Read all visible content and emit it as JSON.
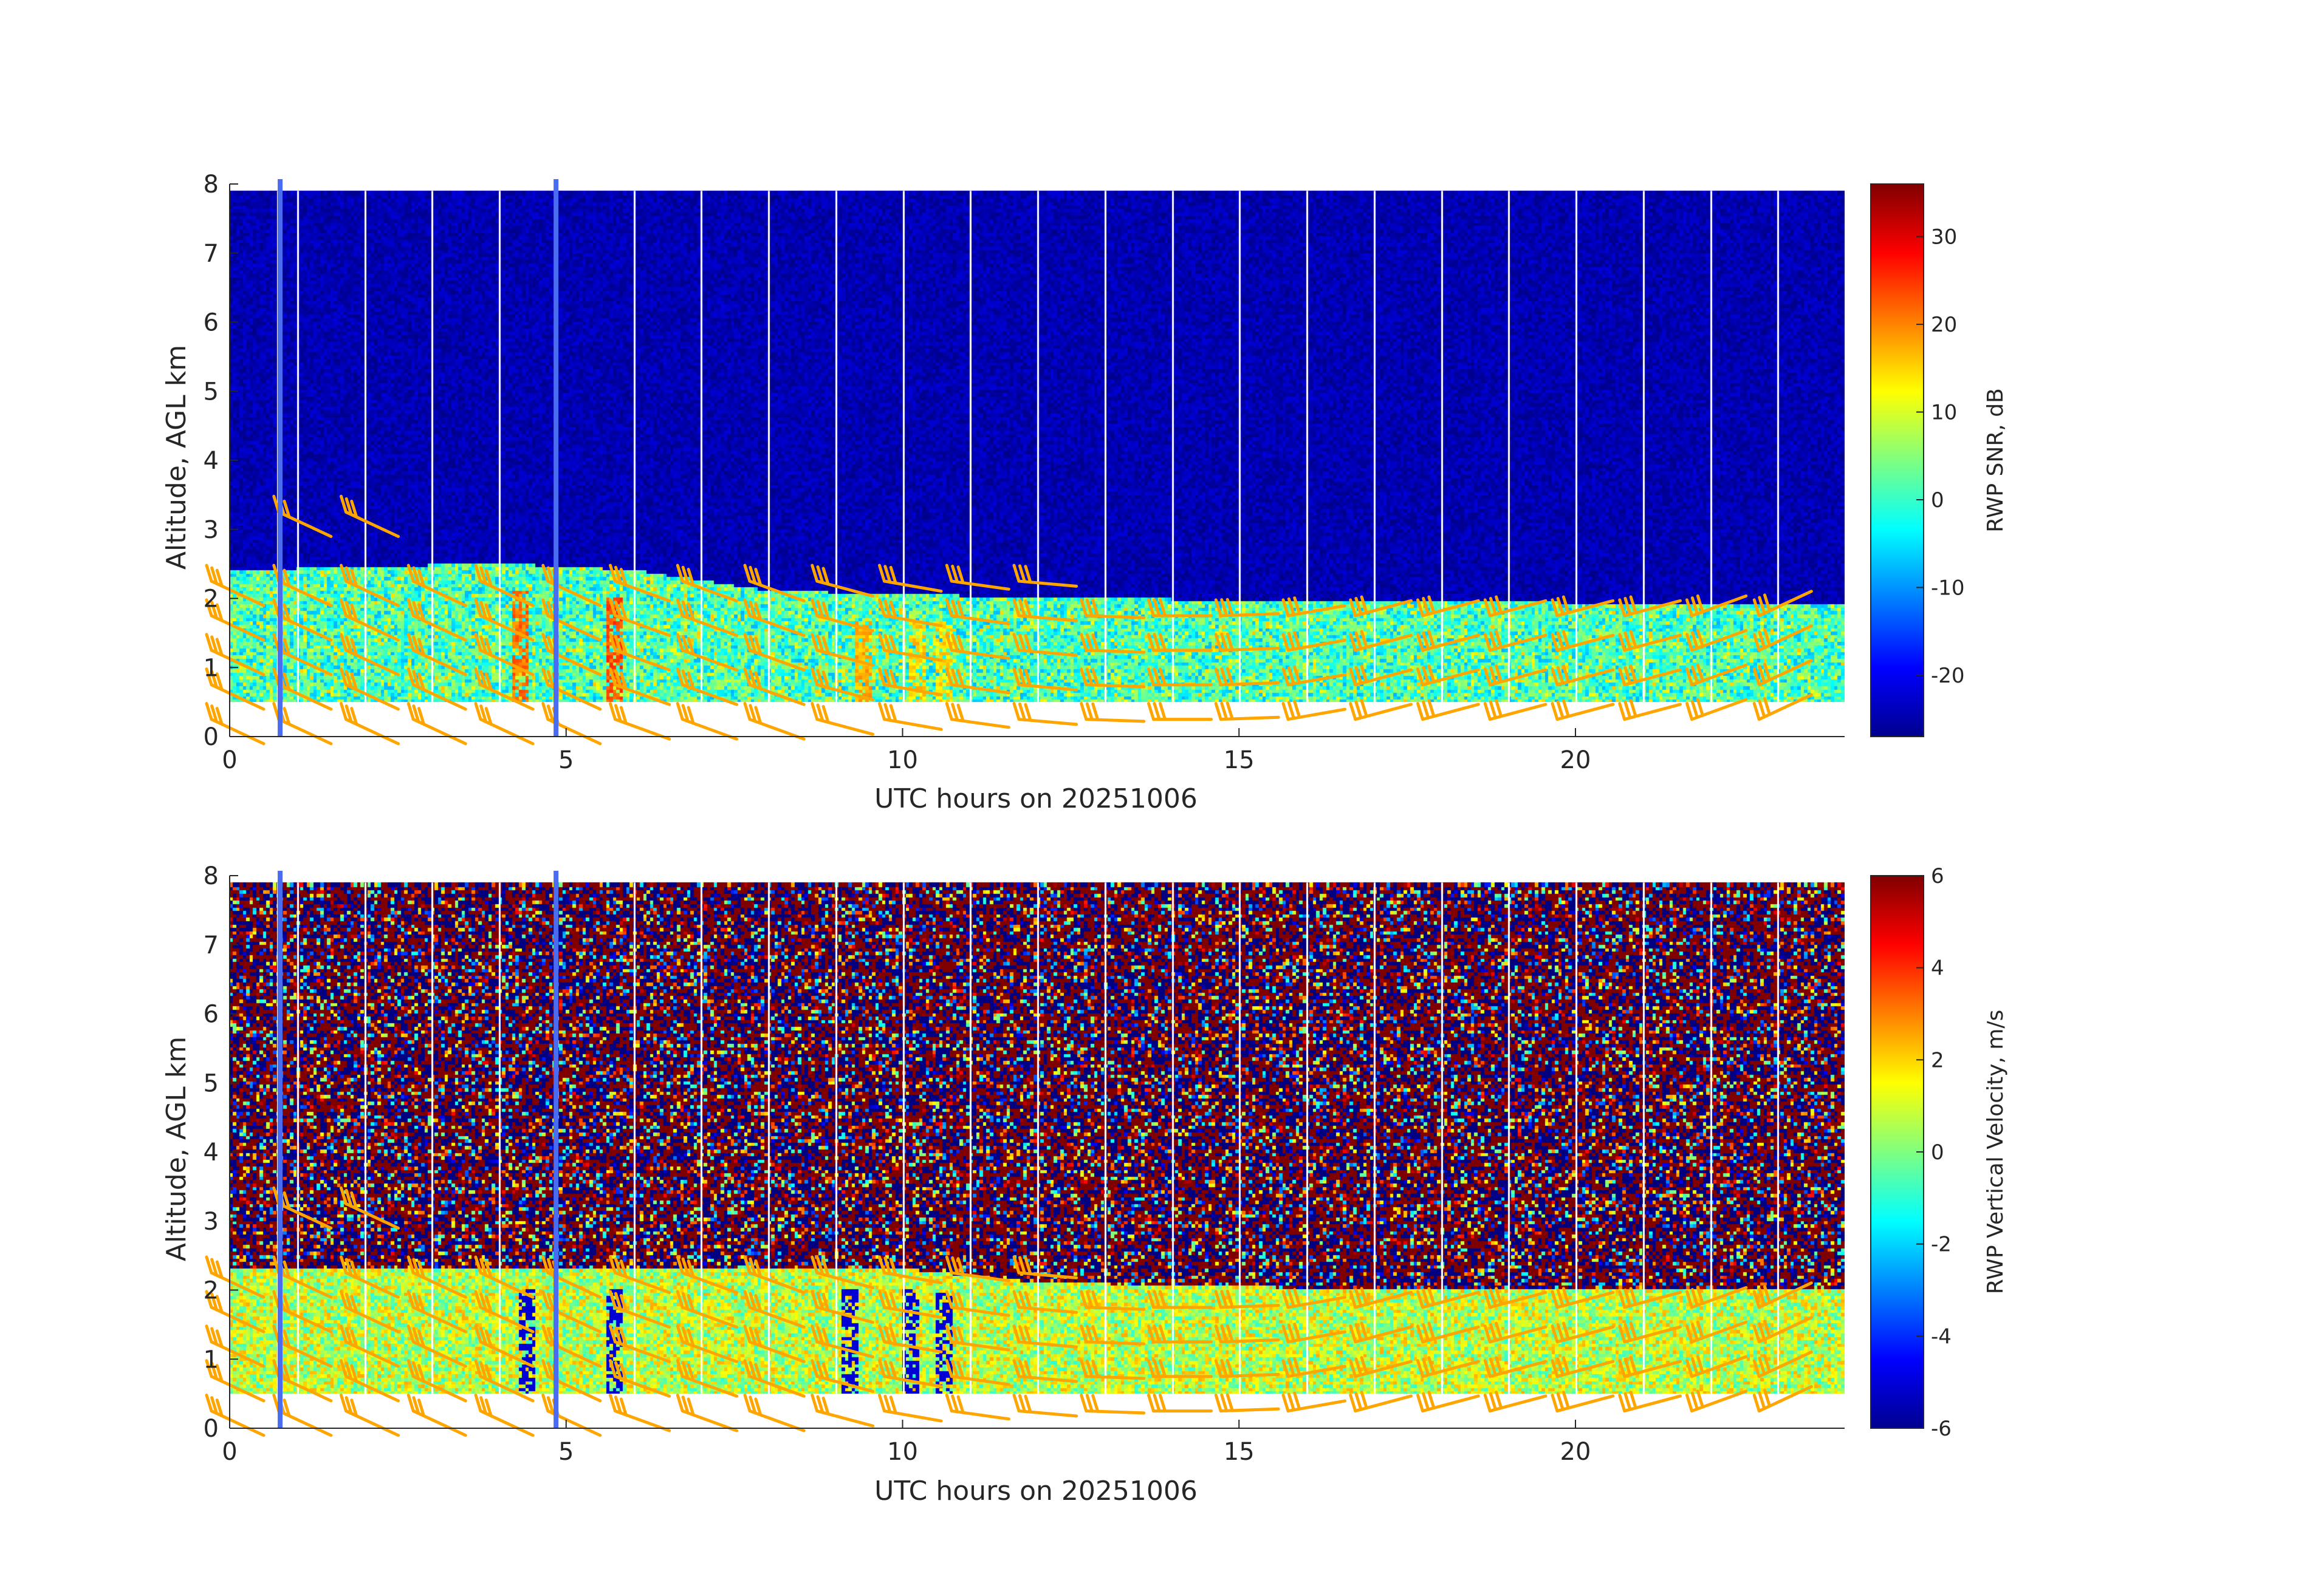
{
  "chart_data": [
    {
      "type": "heatmap",
      "xlabel": "UTC hours on 20251006",
      "ylabel": "Altitude, AGL km",
      "colorbar_label": "RWP SNR, dB",
      "xlim": [
        0,
        24
      ],
      "ylim": [
        0,
        8
      ],
      "x_ticks": [
        0,
        5,
        10,
        15,
        20
      ],
      "y_ticks": [
        0,
        1,
        2,
        3,
        4,
        5,
        6,
        7,
        8
      ],
      "clim": [
        -27,
        36
      ],
      "colorbar_ticks": [
        -20,
        -10,
        0,
        10,
        20,
        30
      ],
      "colormap": "jet",
      "data_bottom_km": 0.5,
      "data_top_km": 7.9,
      "background_value": -24,
      "boundary_layer": {
        "top_km": [
          [
            0,
            2.4
          ],
          [
            4,
            2.5
          ],
          [
            6,
            2.4
          ],
          [
            8,
            2.1
          ],
          [
            12,
            2.0
          ],
          [
            17,
            1.95
          ],
          [
            24,
            1.9
          ]
        ],
        "value_range": [
          -8,
          8
        ]
      },
      "hot_spots": [
        {
          "hour": 4.3,
          "value": 24
        },
        {
          "hour": 5.7,
          "value": 26
        },
        {
          "hour": 9.4,
          "value": 20
        },
        {
          "hour": 10.2,
          "value": 18
        },
        {
          "hour": 10.6,
          "value": 17
        }
      ],
      "missing_hours": [
        0.7,
        1.0,
        2.0,
        3.0,
        4.0,
        6.0,
        7.0,
        8.0,
        9.0,
        10.0,
        11.0,
        12.0,
        13.0,
        14.0,
        15.0,
        16.0,
        17.0,
        18.0,
        19.0,
        20.0,
        21.0,
        22.0,
        23.0
      ],
      "gap_hours": [
        0.75,
        4.85
      ]
    },
    {
      "type": "heatmap",
      "xlabel": "UTC hours on 20251006",
      "ylabel": "Altitude, AGL km",
      "colorbar_label": "RWP Vertical Velocity, m/s",
      "xlim": [
        0,
        24
      ],
      "ylim": [
        0,
        8
      ],
      "x_ticks": [
        0,
        5,
        10,
        15,
        20
      ],
      "y_ticks": [
        0,
        1,
        2,
        3,
        4,
        5,
        6,
        7,
        8
      ],
      "clim": [
        -6,
        6
      ],
      "colorbar_ticks": [
        -6,
        -4,
        -2,
        0,
        2,
        4,
        6
      ],
      "colormap": "jet",
      "data_bottom_km": 0.5,
      "data_top_km": 7.9,
      "noise_range": [
        -6,
        6
      ],
      "boundary_layer": {
        "top_km": [
          [
            0,
            2.3
          ],
          [
            6,
            2.3
          ],
          [
            10,
            2.3
          ],
          [
            12,
            2.1
          ],
          [
            17,
            2.0
          ],
          [
            24,
            2.0
          ]
        ],
        "value_range": [
          -1,
          2.5
        ]
      },
      "downdrafts": [
        {
          "hour": 4.4,
          "value": -5
        },
        {
          "hour": 5.7,
          "value": -5
        },
        {
          "hour": 9.2,
          "value": -5
        },
        {
          "hour": 10.1,
          "value": -5
        },
        {
          "hour": 10.6,
          "value": -5
        }
      ],
      "missing_hours": [
        0.7,
        1.0,
        2.0,
        3.0,
        4.0,
        6.0,
        7.0,
        8.0,
        9.0,
        10.0,
        11.0,
        12.0,
        13.0,
        14.0,
        15.0,
        16.0,
        17.0,
        18.0,
        19.0,
        20.0,
        21.0,
        22.0,
        23.0
      ],
      "gap_hours": [
        0.75,
        4.85
      ]
    }
  ],
  "wind_barbs": {
    "color": "#FFA500",
    "hours": [
      0,
      1,
      2,
      3,
      4,
      5,
      6,
      7,
      8,
      9,
      10,
      11,
      12,
      13,
      14,
      15,
      16,
      17,
      18,
      19,
      20,
      21,
      22,
      23
    ],
    "levels_km": [
      0.25,
      0.75,
      1.25,
      1.75,
      2.25,
      3.25
    ],
    "profiles": [
      {
        "hour": 0,
        "top_km": 2.25,
        "dir_deg": 245
      },
      {
        "hour": 1,
        "top_km": 3.25,
        "dir_deg": 245
      },
      {
        "hour": 2,
        "top_km": 3.25,
        "dir_deg": 245
      },
      {
        "hour": 3,
        "top_km": 2.25,
        "dir_deg": 245
      },
      {
        "hour": 4,
        "top_km": 2.25,
        "dir_deg": 245
      },
      {
        "hour": 5,
        "top_km": 2.25,
        "dir_deg": 245
      },
      {
        "hour": 6,
        "top_km": 2.25,
        "dir_deg": 250
      },
      {
        "hour": 7,
        "top_km": 2.25,
        "dir_deg": 250
      },
      {
        "hour": 8,
        "top_km": 2.25,
        "dir_deg": 250
      },
      {
        "hour": 9,
        "top_km": 2.25,
        "dir_deg": 255
      },
      {
        "hour": 10,
        "top_km": 2.25,
        "dir_deg": 260
      },
      {
        "hour": 11,
        "top_km": 2.25,
        "dir_deg": 262
      },
      {
        "hour": 12,
        "top_km": 2.25,
        "dir_deg": 265
      },
      {
        "hour": 13,
        "top_km": 2.0,
        "dir_deg": 268
      },
      {
        "hour": 14,
        "top_km": 2.0,
        "dir_deg": 270
      },
      {
        "hour": 15,
        "top_km": 2.0,
        "dir_deg": 272
      },
      {
        "hour": 16,
        "top_km": 2.0,
        "dir_deg": 280
      },
      {
        "hour": 17,
        "top_km": 2.0,
        "dir_deg": 285
      },
      {
        "hour": 18,
        "top_km": 2.0,
        "dir_deg": 285
      },
      {
        "hour": 19,
        "top_km": 2.0,
        "dir_deg": 285
      },
      {
        "hour": 20,
        "top_km": 2.0,
        "dir_deg": 285
      },
      {
        "hour": 21,
        "top_km": 2.0,
        "dir_deg": 285
      },
      {
        "hour": 22,
        "top_km": 2.0,
        "dir_deg": 290
      },
      {
        "hour": 23,
        "top_km": 2.0,
        "dir_deg": 295
      }
    ]
  }
}
